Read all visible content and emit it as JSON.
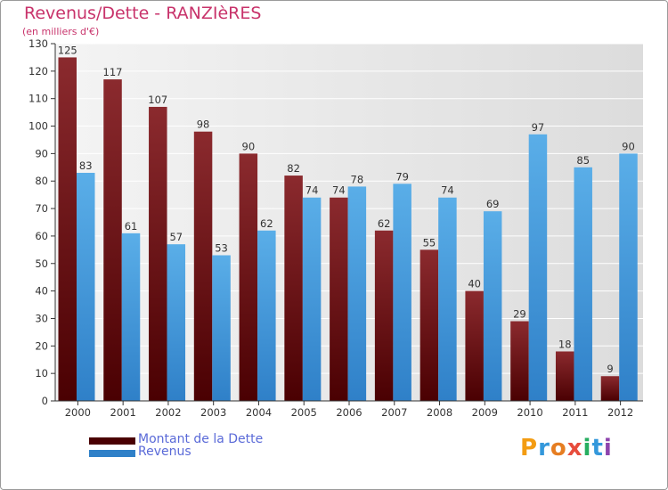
{
  "title": "Revenus/Dette - RANZIèRES",
  "subtitle": "(en milliers d'€)",
  "logo": {
    "text": "Proxiti",
    "letters": [
      "P",
      "r",
      "o",
      "x",
      "i",
      "t",
      "i"
    ],
    "colors": [
      "#f39c12",
      "#3498db",
      "#e67e22",
      "#e74c3c",
      "#27ae60",
      "#3498db",
      "#8e44ad"
    ]
  },
  "chart_data": {
    "type": "bar",
    "title": "Revenus/Dette - RANZIèRES",
    "ylabel": "(en milliers d'€)",
    "xlabel": "",
    "categories": [
      "2000",
      "2001",
      "2002",
      "2003",
      "2004",
      "2005",
      "2006",
      "2007",
      "2008",
      "2009",
      "2010",
      "2011",
      "2012"
    ],
    "series": [
      {
        "name": "Montant de la Dette",
        "values": [
          125,
          117,
          107,
          98,
          90,
          82,
          74,
          62,
          55,
          40,
          29,
          18,
          9
        ],
        "color_top": "#8b2a2e",
        "color_bottom": "#4a0002"
      },
      {
        "name": "Revenus",
        "values": [
          83,
          61,
          57,
          53,
          62,
          74,
          78,
          79,
          74,
          69,
          97,
          85,
          90
        ],
        "color_top": "#5aaee8",
        "color_bottom": "#2f80c8"
      }
    ],
    "ylim": [
      0,
      130
    ],
    "yticks": [
      0,
      10,
      20,
      30,
      40,
      50,
      60,
      70,
      80,
      90,
      100,
      110,
      120,
      130
    ],
    "grid": true,
    "legend": "bottom-left"
  }
}
